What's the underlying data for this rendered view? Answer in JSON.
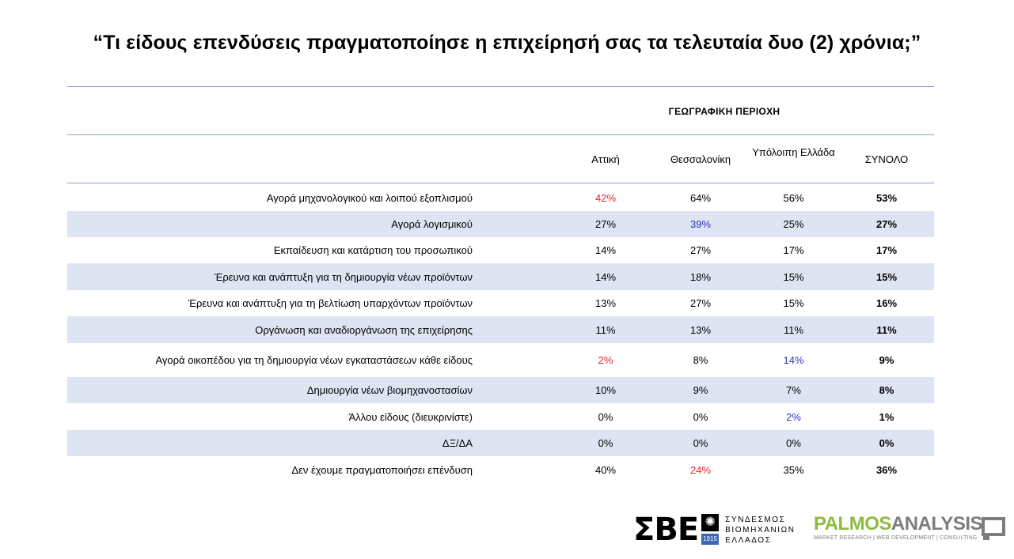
{
  "title": "“Τι είδους επενδύσεις πραγματοποίησε η επιχείρησή σας τα τελευταία δυο (2) χρόνια;”",
  "table": {
    "group_header": "ΓΕΩΓΡΑΦΙΚΗ ΠΕΡΙΟΧΗ",
    "columns": [
      "Αττική",
      "Θεσσαλονίκη",
      "Υπόλοιπη Ελλάδα",
      "ΣΥΝΟΛΟ"
    ],
    "rows": [
      {
        "label": "Αγορά μηχανολογικού και λοιπού εξοπλισμού",
        "values": [
          "42%",
          "64%",
          "56%",
          "53%"
        ],
        "highlight": {
          "0": "red"
        }
      },
      {
        "label": "Αγορά λογισμικού",
        "values": [
          "27%",
          "39%",
          "25%",
          "27%"
        ],
        "highlight": {
          "1": "blue"
        }
      },
      {
        "label": "Εκπαίδευση και κατάρτιση του προσωπικού",
        "values": [
          "14%",
          "27%",
          "17%",
          "17%"
        ]
      },
      {
        "label": "Έρευνα και ανάπτυξη για τη δημιουργία νέων προϊόντων",
        "values": [
          "14%",
          "18%",
          "15%",
          "15%"
        ]
      },
      {
        "label": "Έρευνα και ανάπτυξη για τη βελτίωση υπαρχόντων προϊόντων",
        "values": [
          "13%",
          "27%",
          "15%",
          "16%"
        ]
      },
      {
        "label": "Οργάνωση και αναδιοργάνωση της επιχείρησης",
        "values": [
          "11%",
          "13%",
          "11%",
          "11%"
        ]
      },
      {
        "label": "Αγορά οικοπέδου για τη δημιουργία νέων εγκαταστάσεων κάθε είδους",
        "values": [
          "2%",
          "8%",
          "14%",
          "9%"
        ],
        "highlight": {
          "0": "red",
          "2": "blue"
        }
      },
      {
        "label": "Δημιουργία νέων βιομηχανοστασίων",
        "values": [
          "10%",
          "9%",
          "7%",
          "8%"
        ]
      },
      {
        "label": "Άλλου είδους (διευκρινίστε)",
        "values": [
          "0%",
          "0%",
          "2%",
          "1%"
        ],
        "highlight": {
          "2": "blue"
        }
      },
      {
        "label": "ΔΞ/ΔΑ",
        "values": [
          "0%",
          "0%",
          "0%",
          "0%"
        ]
      },
      {
        "label": "Δεν έχουμε πραγματοποιήσει επένδυση",
        "values": [
          "40%",
          "24%",
          "35%",
          "36%"
        ],
        "highlight": {
          "1": "red"
        }
      }
    ]
  },
  "colors": {
    "red": "#e8272a",
    "blue": "#2a36b8",
    "shade": "#dee4f2",
    "rule": "#8ea0cf"
  },
  "logos": {
    "sbe": {
      "letters": "ΣΒΕ",
      "year": "1915",
      "name_lines": [
        "ΣΥΝΔΕΣΜΟΣ",
        "ΒΙΟΜΗΧΑΝΙΩΝ",
        "ΕΛΛΑΔΟΣ"
      ]
    },
    "palmos": {
      "word_a": "PALMOS",
      "word_b": "ANALYSIS",
      "tagline": "MARKET RESEARCH | WEB DEVELOPMENT | CONSULTING"
    }
  }
}
